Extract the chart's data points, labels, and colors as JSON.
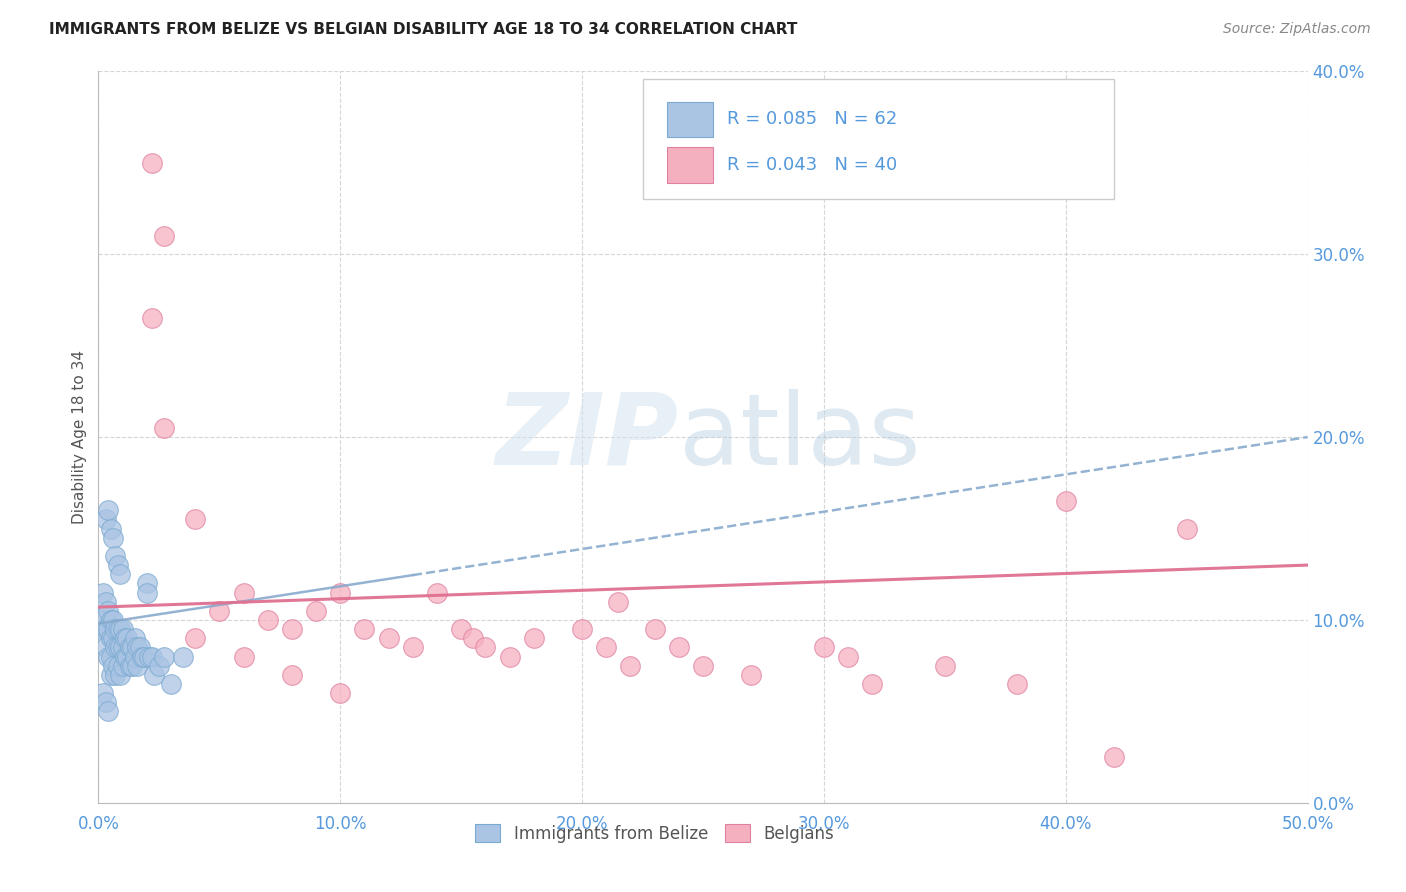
{
  "title": "IMMIGRANTS FROM BELIZE VS BELGIAN DISABILITY AGE 18 TO 34 CORRELATION CHART",
  "source": "Source: ZipAtlas.com",
  "ylabel": "Disability Age 18 to 34",
  "legend_belize": "Immigrants from Belize",
  "legend_belgians": "Belgians",
  "r_belize": "R = 0.085",
  "n_belize": "N = 62",
  "r_belgians": "R = 0.043",
  "n_belgians": "N = 40",
  "xlim": [
    0.0,
    0.5
  ],
  "ylim": [
    0.0,
    0.4
  ],
  "yticks": [
    0.0,
    0.1,
    0.2,
    0.3,
    0.4
  ],
  "xticks": [
    0.0,
    0.1,
    0.2,
    0.3,
    0.4,
    0.5
  ],
  "color_belize_fill": "#aac4e4",
  "color_belize_edge": "#7aaad0",
  "color_belgians_fill": "#f5b0c0",
  "color_belgians_edge": "#e080a0",
  "color_belize_trend": "#88aacc",
  "color_belgians_trend": "#e07090",
  "color_axis_labels": "#5599dd",
  "color_title": "#333333",
  "belize_x": [
    0.001,
    0.002,
    0.002,
    0.003,
    0.003,
    0.003,
    0.004,
    0.004,
    0.004,
    0.005,
    0.005,
    0.005,
    0.005,
    0.006,
    0.006,
    0.006,
    0.007,
    0.007,
    0.007,
    0.008,
    0.008,
    0.008,
    0.009,
    0.009,
    0.009,
    0.01,
    0.01,
    0.01,
    0.011,
    0.011,
    0.012,
    0.012,
    0.013,
    0.013,
    0.014,
    0.014,
    0.015,
    0.015,
    0.016,
    0.016,
    0.017,
    0.018,
    0.019,
    0.02,
    0.021,
    0.022,
    0.023,
    0.025,
    0.027,
    0.03,
    0.003,
    0.004,
    0.005,
    0.006,
    0.007,
    0.008,
    0.009,
    0.002,
    0.003,
    0.004,
    0.02,
    0.035
  ],
  "belize_y": [
    0.095,
    0.115,
    0.1,
    0.11,
    0.095,
    0.085,
    0.105,
    0.095,
    0.08,
    0.1,
    0.09,
    0.08,
    0.07,
    0.1,
    0.09,
    0.075,
    0.095,
    0.085,
    0.07,
    0.095,
    0.085,
    0.075,
    0.095,
    0.085,
    0.07,
    0.095,
    0.085,
    0.075,
    0.09,
    0.08,
    0.09,
    0.08,
    0.085,
    0.075,
    0.085,
    0.075,
    0.09,
    0.08,
    0.085,
    0.075,
    0.085,
    0.08,
    0.08,
    0.12,
    0.08,
    0.08,
    0.07,
    0.075,
    0.08,
    0.065,
    0.155,
    0.16,
    0.15,
    0.145,
    0.135,
    0.13,
    0.125,
    0.06,
    0.055,
    0.05,
    0.115,
    0.08
  ],
  "belgians_x": [
    0.022,
    0.027,
    0.022,
    0.027,
    0.04,
    0.05,
    0.06,
    0.07,
    0.08,
    0.09,
    0.1,
    0.11,
    0.12,
    0.13,
    0.14,
    0.15,
    0.155,
    0.16,
    0.17,
    0.18,
    0.2,
    0.21,
    0.215,
    0.22,
    0.23,
    0.24,
    0.25,
    0.27,
    0.3,
    0.31,
    0.32,
    0.35,
    0.38,
    0.4,
    0.04,
    0.06,
    0.08,
    0.1,
    0.42,
    0.45
  ],
  "belgians_y": [
    0.35,
    0.31,
    0.265,
    0.205,
    0.155,
    0.105,
    0.115,
    0.1,
    0.095,
    0.105,
    0.115,
    0.095,
    0.09,
    0.085,
    0.115,
    0.095,
    0.09,
    0.085,
    0.08,
    0.09,
    0.095,
    0.085,
    0.11,
    0.075,
    0.095,
    0.085,
    0.075,
    0.07,
    0.085,
    0.08,
    0.065,
    0.075,
    0.065,
    0.165,
    0.09,
    0.08,
    0.07,
    0.06,
    0.025,
    0.15
  ],
  "trend_bel_x0": 0.0,
  "trend_bel_y0": 0.098,
  "trend_bel_x1": 0.5,
  "trend_bel_y1": 0.2,
  "trend_bel_solid_x1": 0.13,
  "trend_belg_x0": 0.0,
  "trend_belg_y0": 0.107,
  "trend_belg_x1": 0.5,
  "trend_belg_y1": 0.13
}
